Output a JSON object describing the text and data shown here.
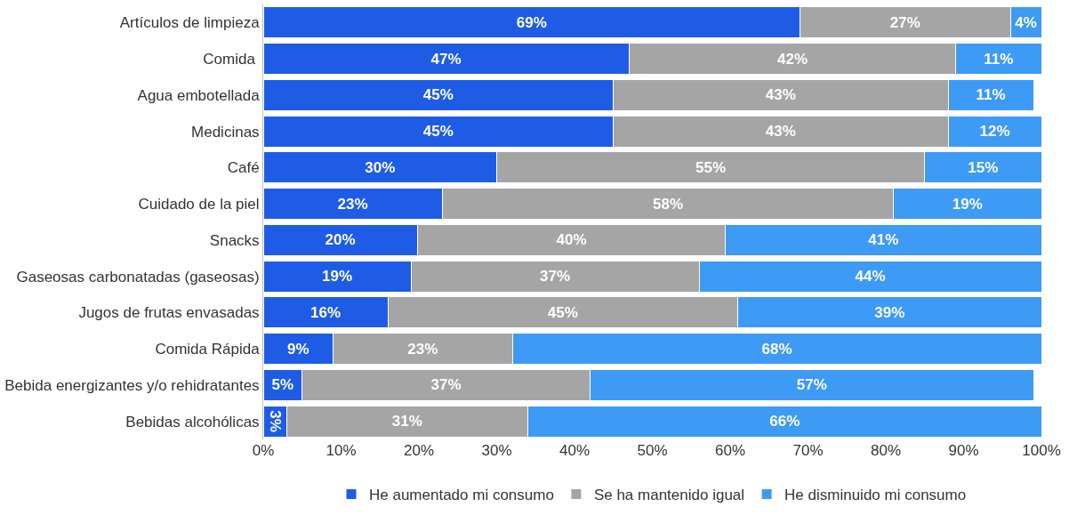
{
  "chart_data": {
    "type": "bar",
    "orientation": "horizontal",
    "stacked": true,
    "legend": "bottom",
    "categories": [
      "Artículos de limpieza",
      "Comida ",
      "Agua embotellada",
      "Medicinas",
      "Café",
      "Cuidado de la piel",
      "Snacks",
      "Gaseosas carbonatadas (gaseosas)",
      "Jugos de frutas envasadas",
      "Comida Rápida",
      "Bebida energizantes y/o rehidratantes",
      "Bebidas alcohólicas"
    ],
    "series": [
      {
        "name": "He aumentado mi consumo",
        "color": "#1f5ce6",
        "values": [
          69,
          47,
          45,
          45,
          30,
          23,
          19.8,
          19,
          16,
          9,
          5,
          3
        ],
        "value_labels": [
          "69%",
          "47%",
          "45%",
          "45%",
          "30%",
          "23%",
          "20%",
          "19%",
          "16%",
          "9%",
          "5%",
          "3%"
        ]
      },
      {
        "name": "Se ha mantenido igual",
        "color": "#a5a5a5",
        "values": [
          27,
          42,
          43,
          43,
          55,
          58,
          39.6,
          37,
          45,
          23,
          37,
          31
        ],
        "value_labels": [
          "27%",
          "42%",
          "43%",
          "43%",
          "55%",
          "58%",
          "40%",
          "37%",
          "45%",
          "23%",
          "37%",
          "31%"
        ]
      },
      {
        "name": "He disminuido mi consumo",
        "color": "#3d9af5",
        "values": [
          4,
          11,
          11,
          12,
          15,
          19,
          40.6,
          44,
          39,
          68,
          57,
          66
        ],
        "value_labels": [
          "4%",
          "11%",
          "11%",
          "12%",
          "15%",
          "19%",
          "41%",
          "44%",
          "39%",
          "68%",
          "57%",
          "66%"
        ]
      }
    ],
    "xlim": [
      0,
      100
    ],
    "xticks": [
      {
        "value": 0,
        "label": "0%"
      },
      {
        "value": 10,
        "label": "10%"
      },
      {
        "value": 20,
        "label": "20%"
      },
      {
        "value": 30,
        "label": "30%"
      },
      {
        "value": 40,
        "label": "40%"
      },
      {
        "value": 50,
        "label": "50%"
      },
      {
        "value": 60,
        "label": "60%"
      },
      {
        "value": 70,
        "label": "70%"
      },
      {
        "value": 80,
        "label": "80%"
      },
      {
        "value": 90,
        "label": "90%"
      },
      {
        "value": 100,
        "label": "100%"
      }
    ]
  }
}
